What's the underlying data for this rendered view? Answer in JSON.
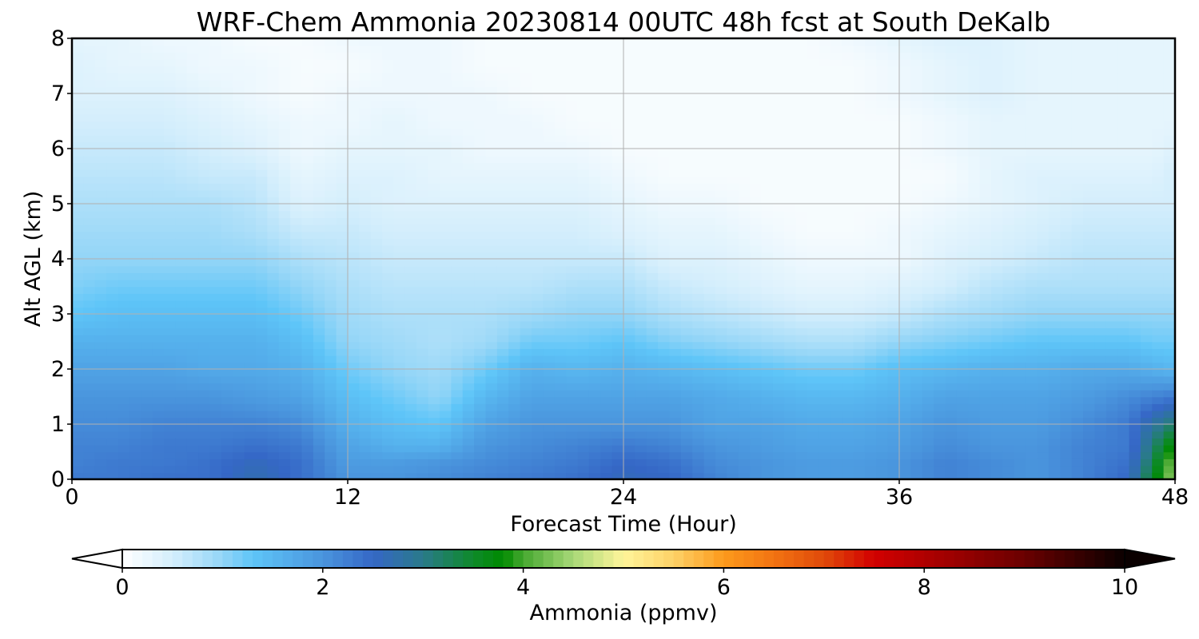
{
  "chart_data": {
    "type": "heatmap",
    "title": "WRF-Chem Ammonia  20230814 00UTC 48h fcst at South DeKalb",
    "xlabel": "Forecast Time (Hour)",
    "ylabel": "Alt AGL (km)",
    "xlim": [
      0,
      48
    ],
    "ylim": [
      0,
      8
    ],
    "x_ticks": [
      "0",
      "12",
      "24",
      "36",
      "48"
    ],
    "y_ticks": [
      "0",
      "1",
      "2",
      "3",
      "4",
      "5",
      "6",
      "7",
      "8"
    ],
    "grid": true,
    "x_hours": [
      0,
      2,
      4,
      6,
      8,
      10,
      12,
      14,
      16,
      18,
      20,
      22,
      24,
      26,
      28,
      30,
      32,
      34,
      36,
      38,
      40,
      42,
      44,
      46,
      47,
      48
    ],
    "y_km": [
      0,
      0.3,
      0.6,
      1.0,
      1.5,
      2.0,
      2.5,
      3.0,
      3.5,
      4.0,
      4.5,
      5.0,
      5.5,
      6.0,
      6.5,
      7.0,
      7.5,
      8.0
    ],
    "values_ppmv": [
      [
        2.3,
        2.2,
        2.2,
        2.1,
        2.0,
        1.8,
        1.6,
        1.3,
        1.1,
        1.0,
        0.9,
        0.8,
        0.7,
        0.6,
        0.5,
        0.4,
        0.4,
        0.3
      ],
      [
        2.3,
        2.3,
        2.2,
        2.1,
        2.0,
        1.8,
        1.6,
        1.4,
        1.2,
        1.0,
        0.9,
        0.8,
        0.7,
        0.6,
        0.5,
        0.4,
        0.3,
        0.3
      ],
      [
        2.4,
        2.3,
        2.3,
        2.2,
        2.0,
        1.8,
        1.6,
        1.4,
        1.2,
        1.0,
        0.9,
        0.8,
        0.7,
        0.6,
        0.5,
        0.4,
        0.3,
        0.2
      ],
      [
        2.4,
        2.4,
        2.3,
        2.2,
        2.0,
        1.7,
        1.6,
        1.4,
        1.2,
        1.0,
        0.9,
        0.8,
        0.6,
        0.5,
        0.4,
        0.3,
        0.2,
        0.2
      ],
      [
        2.7,
        2.6,
        2.4,
        2.2,
        1.9,
        1.7,
        1.6,
        1.4,
        1.2,
        1.0,
        0.8,
        0.7,
        0.6,
        0.4,
        0.3,
        0.2,
        0.2,
        0.1
      ],
      [
        2.4,
        2.4,
        2.3,
        2.1,
        1.8,
        1.6,
        1.4,
        1.2,
        1.0,
        0.8,
        0.6,
        0.4,
        0.3,
        0.2,
        0.2,
        0.1,
        0.1,
        0.1
      ],
      [
        2.0,
        1.9,
        1.8,
        1.6,
        1.4,
        1.2,
        1.0,
        0.9,
        0.8,
        0.7,
        0.6,
        0.5,
        0.4,
        0.3,
        0.2,
        0.2,
        0.1,
        0.2
      ],
      [
        2.0,
        1.9,
        1.6,
        1.4,
        1.2,
        1.0,
        0.9,
        0.8,
        0.7,
        0.6,
        0.5,
        0.4,
        0.4,
        0.3,
        0.3,
        0.2,
        0.2,
        0.2
      ],
      [
        2.1,
        2.0,
        1.6,
        1.3,
        1.0,
        0.9,
        0.8,
        0.8,
        0.7,
        0.6,
        0.5,
        0.4,
        0.3,
        0.3,
        0.2,
        0.2,
        0.2,
        0.2
      ],
      [
        2.2,
        2.1,
        2.0,
        1.8,
        1.5,
        1.2,
        0.9,
        0.8,
        0.7,
        0.6,
        0.5,
        0.4,
        0.3,
        0.2,
        0.2,
        0.2,
        0.1,
        0.1
      ],
      [
        2.3,
        2.2,
        2.1,
        2.0,
        1.8,
        1.6,
        1.2,
        0.9,
        0.7,
        0.6,
        0.5,
        0.4,
        0.3,
        0.2,
        0.2,
        0.1,
        0.1,
        0.1
      ],
      [
        2.4,
        2.3,
        2.2,
        2.0,
        1.8,
        1.5,
        1.2,
        1.0,
        0.8,
        0.6,
        0.5,
        0.4,
        0.3,
        0.2,
        0.1,
        0.1,
        0.1,
        0.1
      ],
      [
        2.6,
        2.5,
        2.3,
        2.0,
        1.8,
        1.6,
        1.3,
        1.0,
        0.8,
        0.6,
        0.4,
        0.3,
        0.2,
        0.1,
        0.1,
        0.1,
        0.1,
        0.1
      ],
      [
        2.5,
        2.4,
        2.2,
        2.0,
        1.8,
        1.5,
        1.1,
        0.8,
        0.6,
        0.4,
        0.3,
        0.2,
        0.1,
        0.1,
        0.1,
        0.1,
        0.1,
        0.1
      ],
      [
        2.2,
        2.1,
        2.0,
        1.8,
        1.7,
        1.4,
        1.0,
        0.7,
        0.5,
        0.4,
        0.3,
        0.2,
        0.1,
        0.1,
        0.1,
        0.1,
        0.1,
        0.1
      ],
      [
        2.0,
        2.0,
        1.9,
        1.8,
        1.6,
        1.3,
        0.9,
        0.6,
        0.4,
        0.3,
        0.2,
        0.1,
        0.1,
        0.1,
        0.1,
        0.1,
        0.1,
        0.1
      ],
      [
        1.9,
        1.9,
        1.8,
        1.7,
        1.5,
        1.2,
        0.8,
        0.5,
        0.3,
        0.2,
        0.1,
        0.1,
        0.1,
        0.1,
        0.1,
        0.1,
        0.1,
        0.1
      ],
      [
        1.9,
        1.9,
        1.8,
        1.7,
        1.5,
        1.2,
        0.8,
        0.5,
        0.3,
        0.2,
        0.1,
        0.1,
        0.1,
        0.1,
        0.1,
        0.1,
        0.1,
        0.2
      ],
      [
        2.0,
        2.0,
        1.9,
        1.8,
        1.6,
        1.4,
        1.0,
        0.6,
        0.4,
        0.2,
        0.2,
        0.1,
        0.1,
        0.1,
        0.1,
        0.2,
        0.2,
        0.3
      ],
      [
        2.2,
        2.2,
        2.1,
        2.0,
        1.8,
        1.5,
        1.1,
        0.8,
        0.5,
        0.4,
        0.3,
        0.2,
        0.1,
        0.2,
        0.2,
        0.3,
        0.3,
        0.4
      ],
      [
        2.1,
        2.1,
        2.0,
        1.9,
        1.8,
        1.6,
        1.2,
        0.9,
        0.7,
        0.5,
        0.4,
        0.3,
        0.3,
        0.3,
        0.3,
        0.4,
        0.4,
        0.4
      ],
      [
        2.0,
        2.0,
        2.0,
        1.9,
        1.8,
        1.6,
        1.3,
        1.0,
        0.8,
        0.6,
        0.5,
        0.4,
        0.4,
        0.3,
        0.3,
        0.3,
        0.3,
        0.3
      ],
      [
        2.2,
        2.2,
        2.2,
        2.1,
        1.9,
        1.7,
        1.3,
        1.0,
        0.8,
        0.7,
        0.6,
        0.5,
        0.4,
        0.3,
        0.3,
        0.3,
        0.3,
        0.3
      ],
      [
        2.5,
        2.4,
        2.3,
        2.3,
        2.1,
        1.7,
        1.3,
        1.0,
        0.8,
        0.7,
        0.6,
        0.5,
        0.4,
        0.3,
        0.3,
        0.3,
        0.3,
        0.3
      ],
      [
        3.5,
        3.3,
        3.1,
        2.8,
        2.2,
        1.6,
        1.2,
        1.0,
        0.8,
        0.7,
        0.6,
        0.5,
        0.4,
        0.3,
        0.3,
        0.3,
        0.3,
        0.3
      ],
      [
        4.5,
        4.3,
        3.9,
        3.2,
        2.3,
        1.5,
        1.2,
        1.0,
        0.8,
        0.7,
        0.6,
        0.5,
        0.5,
        0.4,
        0.3,
        0.3,
        0.3,
        0.3
      ]
    ],
    "colorbar": {
      "label": "Ammonia  (ppmv)",
      "ticks": [
        "0",
        "2",
        "4",
        "6",
        "8",
        "10"
      ],
      "min": 0,
      "max": 10,
      "extend": "both",
      "stops": [
        [
          0.0,
          "#ffffff"
        ],
        [
          0.5,
          "#d4eefc"
        ],
        [
          1.0,
          "#93d5f7"
        ],
        [
          1.3,
          "#5ec5f8"
        ],
        [
          2.0,
          "#4a95dd"
        ],
        [
          2.5,
          "#3567c6"
        ],
        [
          3.0,
          "#2a7a8a"
        ],
        [
          3.5,
          "#0e8a2a"
        ],
        [
          3.8,
          "#008a00"
        ],
        [
          4.0,
          "#46a830"
        ],
        [
          4.5,
          "#a8d878"
        ],
        [
          5.0,
          "#fff59a"
        ],
        [
          5.5,
          "#fdd167"
        ],
        [
          6.0,
          "#fc9a1c"
        ],
        [
          6.5,
          "#f27312"
        ],
        [
          7.0,
          "#e04a0a"
        ],
        [
          7.5,
          "#d10000"
        ],
        [
          8.0,
          "#b00000"
        ],
        [
          9.0,
          "#6a0000"
        ],
        [
          10.0,
          "#0a0000"
        ]
      ]
    }
  }
}
